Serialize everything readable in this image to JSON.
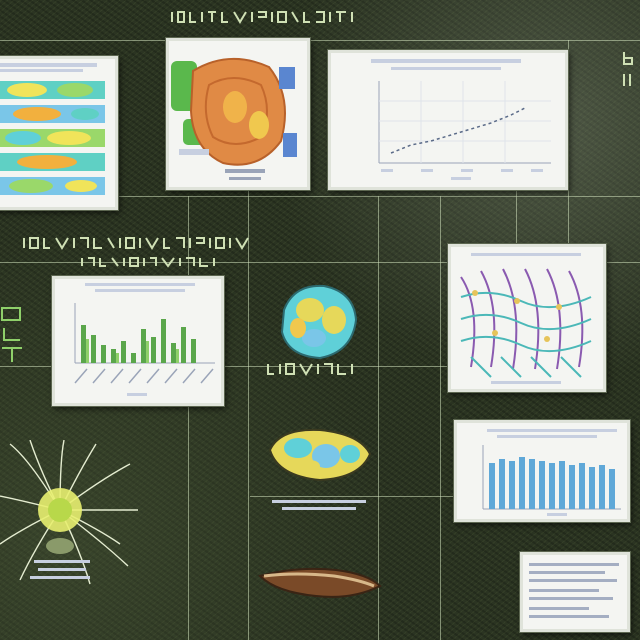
{
  "headings": {
    "top": "",
    "middle_left": "",
    "middle_left_sub": "",
    "center_caption": ""
  },
  "colors": {
    "background": "#2b3422",
    "connector": "#d2e1be",
    "panel": "#f4f5f2",
    "chart_green": "#5aa64b",
    "chart_blue": "#5fa8d8",
    "organism_orange": "#e08a45",
    "organism_cyan": "#5fd0d8",
    "organism_yellow": "#e6d85a",
    "network_purple": "#8a5ab0",
    "network_teal": "#4bb8b8"
  },
  "icons": {
    "radial_organism": "radial-sunburst-icon",
    "seed_pod": "seed-pod-icon"
  }
}
